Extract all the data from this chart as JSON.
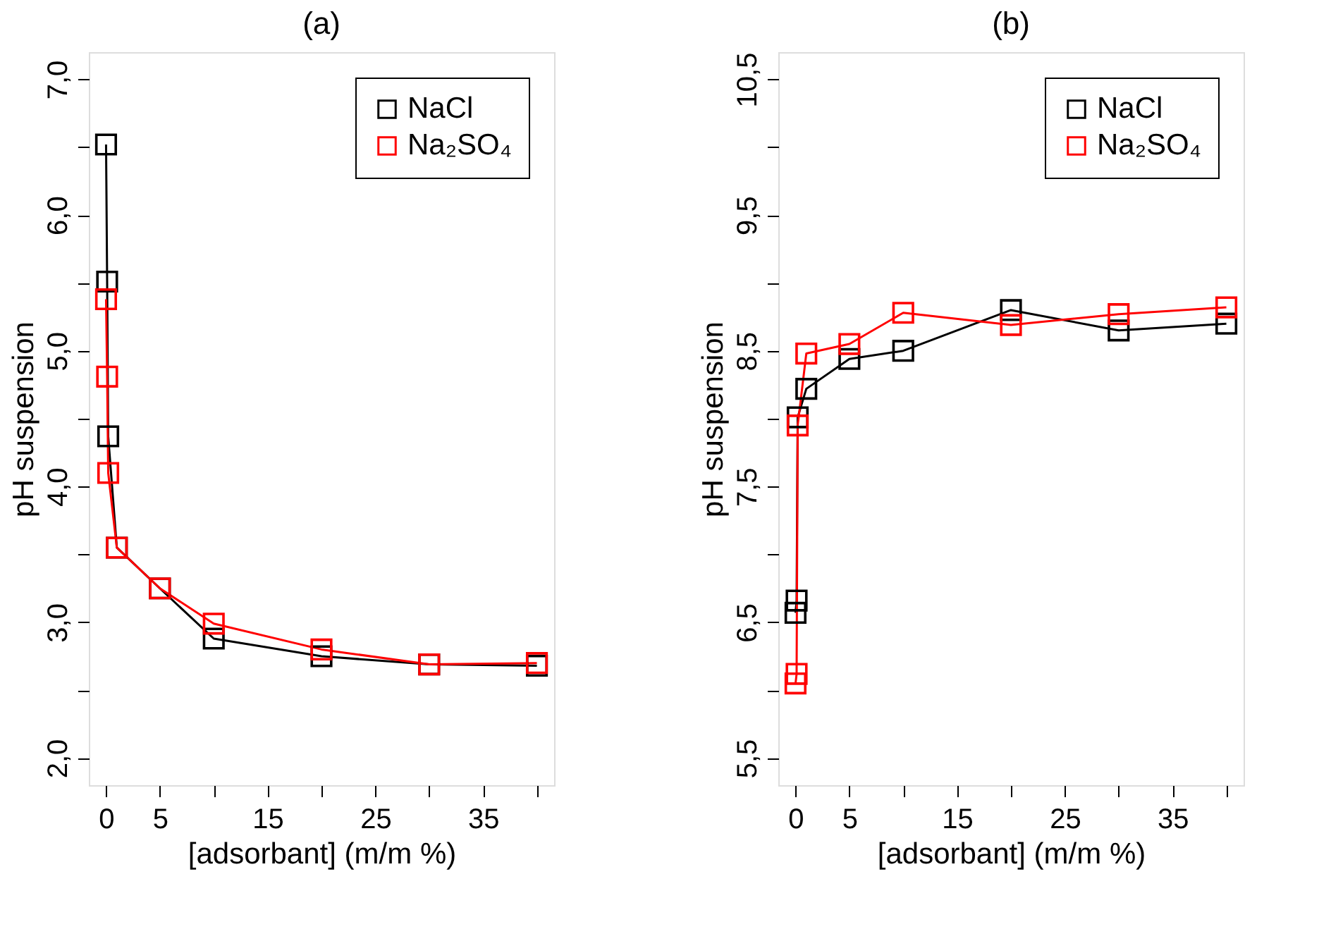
{
  "chart_data": [
    {
      "type": "line",
      "title": "(a)",
      "xlabel": "[adsorbant]  (m/m %)",
      "ylabel": "pH suspension",
      "marker": "square",
      "line_style": "solid",
      "grid": false,
      "legend": "top right",
      "xlim": [
        -1.6,
        41.6
      ],
      "ylim": [
        1.8,
        7.2
      ],
      "xticks": [
        0,
        5,
        {
          "value": 10,
          "label": null
        },
        15,
        {
          "value": 20,
          "label": null
        },
        25,
        {
          "value": 30,
          "label": null
        },
        35,
        {
          "value": 40,
          "label": null
        }
      ],
      "yticks": [
        {
          "value": 2,
          "label": "2,0"
        },
        {
          "value": 2.5,
          "label": null
        },
        {
          "value": 3,
          "label": "3,0"
        },
        {
          "value": 3.5,
          "label": null
        },
        {
          "value": 4,
          "label": "4,0"
        },
        {
          "value": 4.5,
          "label": null
        },
        {
          "value": 5,
          "label": "5,0"
        },
        {
          "value": 5.5,
          "label": null
        },
        {
          "value": 6,
          "label": "6,0"
        },
        {
          "value": 6.5,
          "label": null
        },
        {
          "value": 7,
          "label": "7,0"
        }
      ],
      "series": [
        {
          "name": "NaCl",
          "color": "#000000",
          "x": [
            0,
            0.1,
            0.2,
            1,
            5,
            10,
            20,
            30,
            40
          ],
          "values": [
            6.52,
            5.51,
            4.37,
            3.55,
            3.25,
            2.88,
            2.75,
            2.69,
            2.68
          ]
        },
        {
          "name": "Na₂SO₄",
          "color": "#ff0000",
          "x": [
            0,
            0.1,
            0.2,
            1,
            5,
            10,
            20,
            30,
            40
          ],
          "values": [
            5.38,
            4.81,
            4.1,
            3.55,
            3.25,
            2.99,
            2.8,
            2.69,
            2.7
          ]
        }
      ]
    },
    {
      "type": "line",
      "title": "(b)",
      "xlabel": "[adsorbant] (m/m %)",
      "ylabel": "pH suspension",
      "marker": "square",
      "line_style": "solid",
      "grid": false,
      "legend": "top right",
      "xlim": [
        -1.6,
        41.6
      ],
      "ylim": [
        5.3,
        10.7
      ],
      "xticks": [
        0,
        5,
        {
          "value": 10,
          "label": null
        },
        15,
        {
          "value": 20,
          "label": null
        },
        25,
        {
          "value": 30,
          "label": null
        },
        35,
        {
          "value": 40,
          "label": null
        }
      ],
      "yticks": [
        {
          "value": 5.5,
          "label": "5,5"
        },
        {
          "value": 6,
          "label": null
        },
        {
          "value": 6.5,
          "label": "6,5"
        },
        {
          "value": 7,
          "label": null
        },
        {
          "value": 7.5,
          "label": "7,5"
        },
        {
          "value": 8,
          "label": null
        },
        {
          "value": 8.5,
          "label": "8,5"
        },
        {
          "value": 9,
          "label": null
        },
        {
          "value": 9.5,
          "label": "9,5"
        },
        {
          "value": 10,
          "label": null
        },
        {
          "value": 10.5,
          "label": "10,5"
        }
      ],
      "series": [
        {
          "name": "NaCl",
          "color": "#000000",
          "x": [
            0,
            0.1,
            0.2,
            1,
            5,
            10,
            20,
            30,
            40
          ],
          "values": [
            6.57,
            6.66,
            8.01,
            8.22,
            8.44,
            8.5,
            8.8,
            8.65,
            8.7
          ]
        },
        {
          "name": "Na₂SO₄",
          "color": "#ff0000",
          "x": [
            0,
            0.1,
            0.2,
            1,
            5,
            10,
            20,
            30,
            40
          ],
          "values": [
            6.05,
            6.12,
            7.95,
            8.48,
            8.55,
            8.78,
            8.69,
            8.77,
            8.82
          ]
        }
      ]
    }
  ]
}
